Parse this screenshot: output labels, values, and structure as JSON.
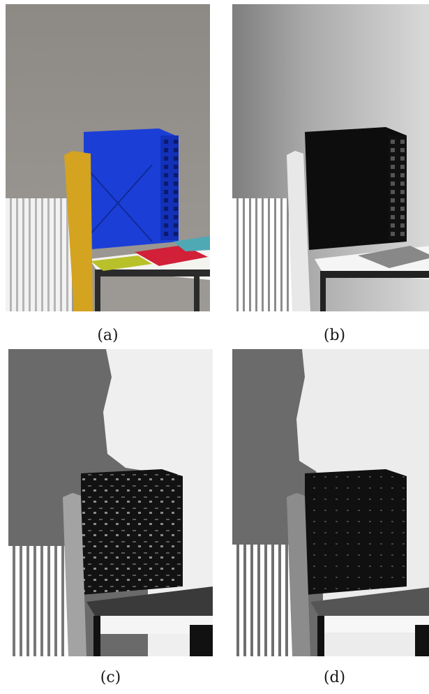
{
  "panels": [
    {
      "id": "a",
      "caption": "(a)",
      "style": "color"
    },
    {
      "id": "b",
      "caption": "(b)",
      "style": "grayscale"
    },
    {
      "id": "c",
      "caption": "(c)",
      "style": "segmented"
    },
    {
      "id": "d",
      "caption": "(d)",
      "style": "segmented-smooth"
    }
  ],
  "colors": {
    "wall_color": "#8f8c87",
    "box_blue": "#1b3fd6",
    "tube_yellow": "#d4a320",
    "radiator": "#e6e6e6",
    "table_dark": "#2b2b2b"
  }
}
